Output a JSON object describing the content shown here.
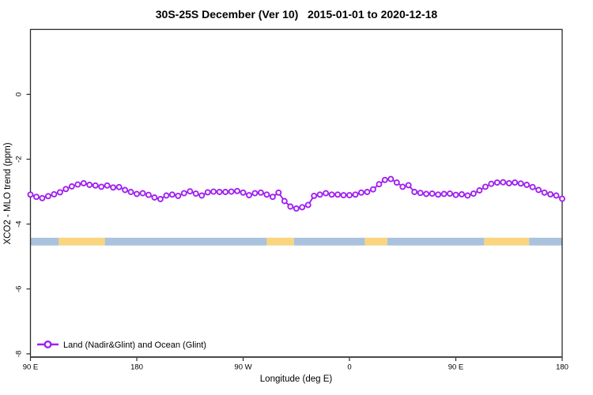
{
  "title": {
    "full": "30S-25S December (Ver 10)   2015-01-01 to 2020-12-18",
    "region": "30S-25S",
    "month": "December",
    "version": "Ver 10",
    "date_range": "2015-01-01 to 2020-12-18"
  },
  "chart_data": {
    "type": "line",
    "title": "30S-25S December (Ver 10)   2015-01-01 to 2020-12-18",
    "xlabel": "Longitude (deg E)",
    "ylabel": "XCO2 - MLO trend (ppm)",
    "xlim": [
      90,
      540
    ],
    "ylim": [
      -8.1,
      2.0
    ],
    "grid": false,
    "x_ticks": [
      {
        "value": 90,
        "label": "90 E"
      },
      {
        "value": 180,
        "label": "180"
      },
      {
        "value": 270,
        "label": "90 W"
      },
      {
        "value": 360,
        "label": "0"
      },
      {
        "value": 450,
        "label": "90 E"
      },
      {
        "value": 540,
        "label": "180"
      }
    ],
    "y_ticks": [
      {
        "value": 0,
        "label": "0"
      },
      {
        "value": -2,
        "label": "-2"
      },
      {
        "value": -4,
        "label": "-4"
      },
      {
        "value": -6,
        "label": "-6"
      },
      {
        "value": -8,
        "label": "-8"
      }
    ],
    "legend": {
      "position": "bottom-left",
      "entries": [
        {
          "label": "Land (Nadir&Glint) and Ocean (Glint)",
          "color": "#A020F0",
          "marker": "open-circle"
        }
      ]
    },
    "series": [
      {
        "name": "Land (Nadir&Glint) and Ocean (Glint)",
        "color": "#A020F0",
        "marker": "open-circle",
        "x": [
          90,
          95,
          100,
          105,
          110,
          115,
          120,
          125,
          130,
          135,
          140,
          145,
          150,
          155,
          160,
          165,
          170,
          175,
          180,
          185,
          190,
          195,
          200,
          205,
          210,
          215,
          220,
          225,
          230,
          235,
          240,
          245,
          250,
          255,
          260,
          265,
          270,
          275,
          280,
          285,
          290,
          295,
          300,
          305,
          310,
          315,
          320,
          325,
          330,
          335,
          340,
          345,
          350,
          355,
          360,
          365,
          370,
          375,
          380,
          385,
          390,
          395,
          400,
          405,
          410,
          415,
          420,
          425,
          430,
          435,
          440,
          445,
          450,
          455,
          460,
          465,
          470,
          475,
          480,
          485,
          490,
          495,
          500,
          505,
          510,
          515,
          520,
          525,
          530,
          535,
          540
        ],
        "values": [
          -3.09,
          -3.16,
          -3.2,
          -3.14,
          -3.08,
          -3.02,
          -2.92,
          -2.84,
          -2.78,
          -2.74,
          -2.79,
          -2.81,
          -2.85,
          -2.81,
          -2.87,
          -2.86,
          -2.95,
          -3.01,
          -3.07,
          -3.05,
          -3.1,
          -3.18,
          -3.23,
          -3.12,
          -3.09,
          -3.13,
          -3.05,
          -2.99,
          -3.06,
          -3.12,
          -3.02,
          -3.0,
          -3.01,
          -3.01,
          -3.0,
          -2.98,
          -3.03,
          -3.11,
          -3.05,
          -3.03,
          -3.09,
          -3.16,
          -3.03,
          -3.29,
          -3.46,
          -3.52,
          -3.48,
          -3.41,
          -3.13,
          -3.09,
          -3.05,
          -3.09,
          -3.09,
          -3.11,
          -3.11,
          -3.09,
          -3.03,
          -3.01,
          -2.93,
          -2.77,
          -2.64,
          -2.61,
          -2.72,
          -2.85,
          -2.8,
          -3.01,
          -3.04,
          -3.07,
          -3.06,
          -3.09,
          -3.07,
          -3.06,
          -3.1,
          -3.08,
          -3.12,
          -3.06,
          -2.96,
          -2.85,
          -2.76,
          -2.72,
          -2.71,
          -2.74,
          -2.72,
          -2.75,
          -2.79,
          -2.86,
          -2.95,
          -3.03,
          -3.08,
          -3.12,
          -3.22
        ]
      }
    ],
    "surface_band": {
      "description": "surface type along longitude",
      "y_top": -4.42,
      "y_bottom": -4.66,
      "colors": {
        "ocean": "#AAC2DD",
        "land": "#FAD57F"
      },
      "segments": [
        {
          "from": 90,
          "to": 114,
          "type": "ocean"
        },
        {
          "from": 114,
          "to": 153,
          "type": "land"
        },
        {
          "from": 153,
          "to": 290,
          "type": "ocean"
        },
        {
          "from": 290,
          "to": 313,
          "type": "land"
        },
        {
          "from": 313,
          "to": 373,
          "type": "ocean"
        },
        {
          "from": 373,
          "to": 392,
          "type": "land"
        },
        {
          "from": 392,
          "to": 474,
          "type": "ocean"
        },
        {
          "from": 474,
          "to": 512,
          "type": "land"
        },
        {
          "from": 512,
          "to": 540,
          "type": "ocean"
        }
      ]
    }
  },
  "colors": {
    "series": "#A020F0",
    "ocean_band": "#AAC2DD",
    "land_band": "#FAD57F",
    "axis": "#2b2b2b",
    "text": "#000000",
    "background": "#ffffff"
  }
}
